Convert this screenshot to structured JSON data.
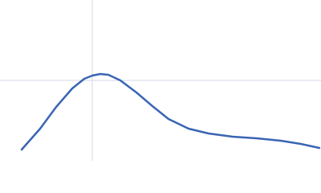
{
  "chart_data": {
    "type": "line",
    "x": [
      27,
      50,
      70,
      90,
      105,
      115,
      125,
      135,
      150,
      170,
      190,
      210,
      235,
      260,
      290,
      320,
      350,
      375,
      398
    ],
    "series": [
      {
        "color": "#3a65b3",
        "values": [
          14,
          40,
          67,
          90,
          102,
          106,
          108,
          107,
          100,
          85,
          68,
          52,
          40,
          34,
          30,
          28,
          25,
          21,
          16
        ]
      }
    ],
    "xlim": [
      0,
      400
    ],
    "ylim": [
      0,
      200
    ],
    "xticks": [
      115
    ],
    "yticks": [
      100
    ],
    "grid": true
  }
}
